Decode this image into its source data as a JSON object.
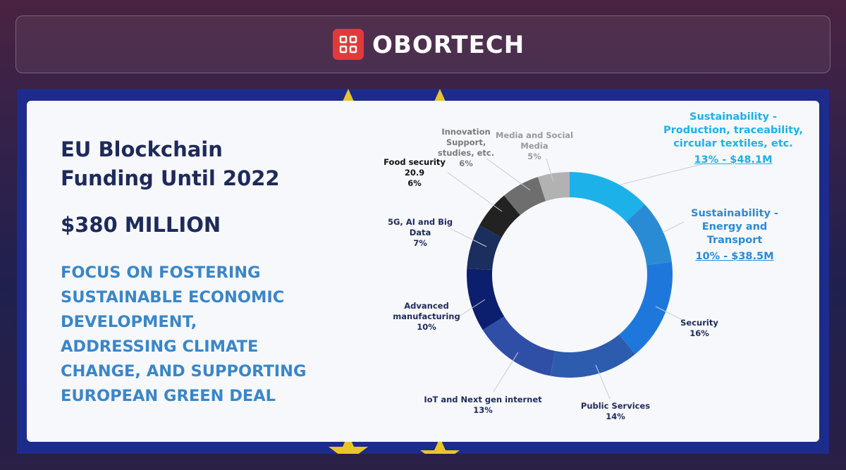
{
  "brand": "OBORTECH",
  "chart_data": {
    "type": "donut",
    "title": "EU Blockchain Funding Until 2022",
    "subtitle": "$380 MILLION",
    "annotation": "FOCUS ON FOSTERING SUSTAINABLE ECONOMIC DEVELOPMENT, ADDRESSING CLIMATE CHANGE, AND SUPPORTING EUROPEAN GREEN DEAL",
    "categories": [
      "Sustainability - Production, traceability, circular textiles, etc.",
      "Sustainability - Energy and Transport",
      "Security",
      "Public Services",
      "IoT and Next gen internet",
      "Advanced manufacturing",
      "5G, AI and Big Data",
      "Food security 20.9",
      "Innovation Support, studies, etc.",
      "Media and Social Media"
    ],
    "values": [
      13,
      10,
      16,
      14,
      13,
      10,
      7,
      6,
      6,
      5
    ],
    "value_labels": [
      "13% - $48.1M",
      "10% - $38.5M",
      "16%",
      "14%",
      "13%",
      "10%",
      "7%",
      "6%",
      "6%",
      "5%"
    ],
    "colors": [
      "#1cb1e9",
      "#2a8bd5",
      "#1e78dc",
      "#2d5cae",
      "#2f4ea6",
      "#0c1f6e",
      "#1b2f5e",
      "#222222",
      "#6e6e6e",
      "#b2b2b2"
    ]
  }
}
